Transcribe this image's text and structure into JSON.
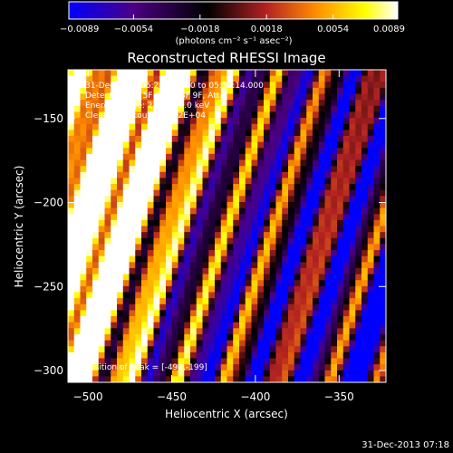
{
  "chart_data": {
    "type": "heatmap",
    "title": "Reconstructed RHESSI Image",
    "xlabel": "Heliocentric X (arcsec)",
    "ylabel": "Heliocentric Y (arcsec)",
    "xlim": [
      -512,
      -322
    ],
    "ylim": [
      -307,
      -121
    ],
    "xticks": [
      -500,
      -450,
      -400,
      -350
    ],
    "yticks": [
      -150,
      -200,
      -250,
      -300
    ],
    "xtick_labels": [
      "−500",
      "−450",
      "−400",
      "−350"
    ],
    "ytick_labels": [
      "−150",
      "−200",
      "−250",
      "−300"
    ],
    "colorbar": {
      "range": [
        -0.0089,
        0.0089
      ],
      "ticks": [
        -0.0089,
        -0.0054,
        -0.0018,
        0.0018,
        0.0054,
        0.0089
      ],
      "tick_labels": [
        "−0.0089",
        "−0.0054",
        "−0.0018",
        "0.0018",
        "0.0054",
        "0.0089"
      ],
      "unit_label": "(photons cm⁻² s⁻¹ asec⁻²)",
      "colors": [
        "#0000ff",
        "#4b0082",
        "#000000",
        "#b22222",
        "#ff8c00",
        "#ffff00",
        "#ffffff"
      ]
    },
    "annotations": [
      "31-Dec-2013 05:28:14.000 to 05:34:14.000",
      "Detectors: 3F 5F 6F 7F 8F 9F, Att 0",
      "Energy Range: 25.0 - 50.0 keV",
      "Clean     Total counts: 2.82E+04"
    ],
    "peak_label": "Position of Peak = [-492,-199]",
    "peak": [
      -492,
      -199
    ]
  },
  "footer": {
    "timestamp": "31-Dec-2013 07:18"
  }
}
